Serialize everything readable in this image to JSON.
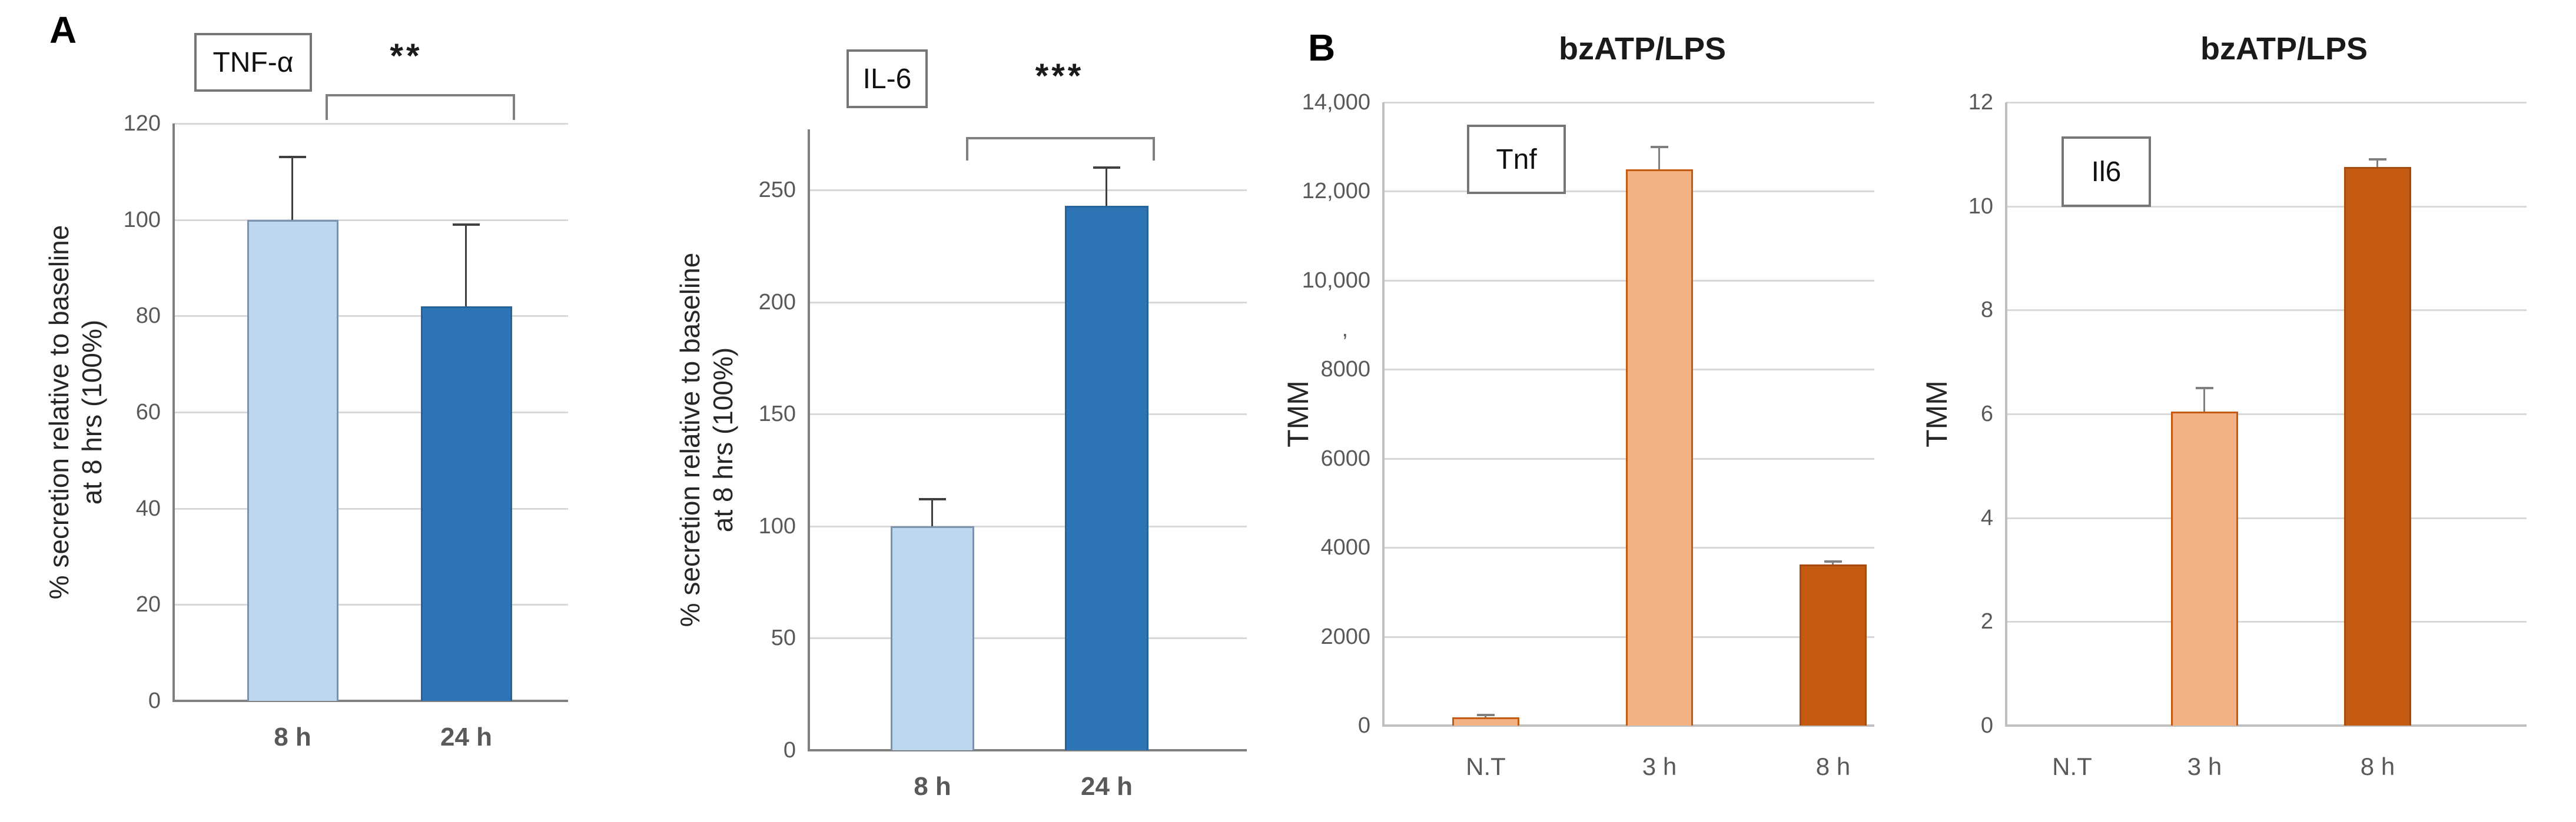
{
  "figure": {
    "panels": [
      {
        "label": "A"
      },
      {
        "label": "B"
      }
    ]
  },
  "chart_data": [
    {
      "type": "bar",
      "panel": "A",
      "box_label": "TNF-α",
      "title": "",
      "ylabel": [
        "% secretion relative to baseline",
        "at 8 hrs (100%)"
      ],
      "ylim": [
        0,
        120
      ],
      "grid": true,
      "yticks": [
        {
          "v": 0,
          "label": "0"
        },
        {
          "v": 20,
          "label": "20"
        },
        {
          "v": 40,
          "label": "40"
        },
        {
          "v": 60,
          "label": "60"
        },
        {
          "v": 80,
          "label": "80"
        },
        {
          "v": 100,
          "label": "100"
        },
        {
          "v": 120,
          "label": "120"
        }
      ],
      "categories": [
        "8 h",
        "24 h"
      ],
      "bars": [
        {
          "category": "8 h",
          "value": 100,
          "error_up": 13,
          "fill": "#BDD7EE",
          "border": "#7B93AE"
        },
        {
          "category": "24 h",
          "value": 82,
          "error_up": 17,
          "fill": "#2E75B6",
          "border": "#27639B"
        }
      ],
      "significance": {
        "stars": "**",
        "between": [
          "8 h",
          "24 h"
        ]
      }
    },
    {
      "type": "bar",
      "panel": "A",
      "box_label": "IL-6",
      "title": "",
      "ylabel": [
        "% secretion relative to baseline",
        "at 8 hrs (100%)"
      ],
      "ylim": [
        0,
        277
      ],
      "grid": true,
      "yticks": [
        {
          "v": 0,
          "label": "0"
        },
        {
          "v": 50,
          "label": "50"
        },
        {
          "v": 100,
          "label": "100"
        },
        {
          "v": 150,
          "label": "150"
        },
        {
          "v": 200,
          "label": "200"
        },
        {
          "v": 250,
          "label": "250"
        }
      ],
      "categories": [
        "8 h",
        "24 h"
      ],
      "bars": [
        {
          "category": "8 h",
          "value": 100,
          "error_up": 12,
          "fill": "#BDD7EE",
          "border": "#7B93AE"
        },
        {
          "category": "24 h",
          "value": 243,
          "error_up": 17,
          "fill": "#2E75B6",
          "border": "#27639B"
        }
      ],
      "significance": {
        "stars": "***",
        "between": [
          "8 h",
          "24 h"
        ]
      }
    },
    {
      "type": "bar",
      "panel": "B",
      "box_label": "Tnf",
      "title": "bzATP/LPS",
      "ylabel": [
        "TMM"
      ],
      "ylim": [
        0,
        14000
      ],
      "grid": true,
      "yticks": [
        {
          "v": 0,
          "label": "0"
        },
        {
          "v": 2000,
          "label": "2000"
        },
        {
          "v": 4000,
          "label": "4000"
        },
        {
          "v": 6000,
          "label": "6000"
        },
        {
          "v": 8000,
          "label": "8000"
        },
        {
          "v": 10000,
          "label": "10,000"
        },
        {
          "v": 12000,
          "label": "12,000"
        },
        {
          "v": 14000,
          "label": "14,000"
        }
      ],
      "stray_mark": {
        "text": ",",
        "at": 8900
      },
      "categories": [
        "N.T",
        "3 h",
        "8 h"
      ],
      "bars": [
        {
          "category": "N.T",
          "value": 180,
          "error_up": 60,
          "fill": "#F4B183",
          "border": "#C55A11"
        },
        {
          "category": "3 h",
          "value": 12500,
          "error_up": 500,
          "fill": "#F4B183",
          "border": "#C55A11"
        },
        {
          "category": "8 h",
          "value": 3620,
          "error_up": 70,
          "fill": "#C55A11",
          "border": "#A64A0D"
        }
      ],
      "significance": null
    },
    {
      "type": "bar",
      "panel": "B",
      "box_label": "Il6",
      "title": "bzATP/LPS",
      "ylabel": [
        "TMM"
      ],
      "ylim": [
        0,
        12
      ],
      "grid": true,
      "yticks": [
        {
          "v": 0,
          "label": "0"
        },
        {
          "v": 2,
          "label": "2"
        },
        {
          "v": 4,
          "label": "4"
        },
        {
          "v": 6,
          "label": "6"
        },
        {
          "v": 8,
          "label": "8"
        },
        {
          "v": 10,
          "label": "10"
        },
        {
          "v": 12,
          "label": "12"
        }
      ],
      "categories": [
        "N.T",
        "3 h",
        "8 h"
      ],
      "bars": [
        {
          "category": "N.T",
          "value": 0,
          "error_up": 0,
          "fill": "#F4B183",
          "border": "#C55A11"
        },
        {
          "category": "3 h",
          "value": 6.05,
          "error_up": 0.45,
          "fill": "#F4B183",
          "border": "#C55A11"
        },
        {
          "category": "8 h",
          "value": 10.75,
          "error_up": 0.15,
          "fill": "#C55A11",
          "border": "#A64A0D"
        }
      ],
      "significance": null
    }
  ]
}
